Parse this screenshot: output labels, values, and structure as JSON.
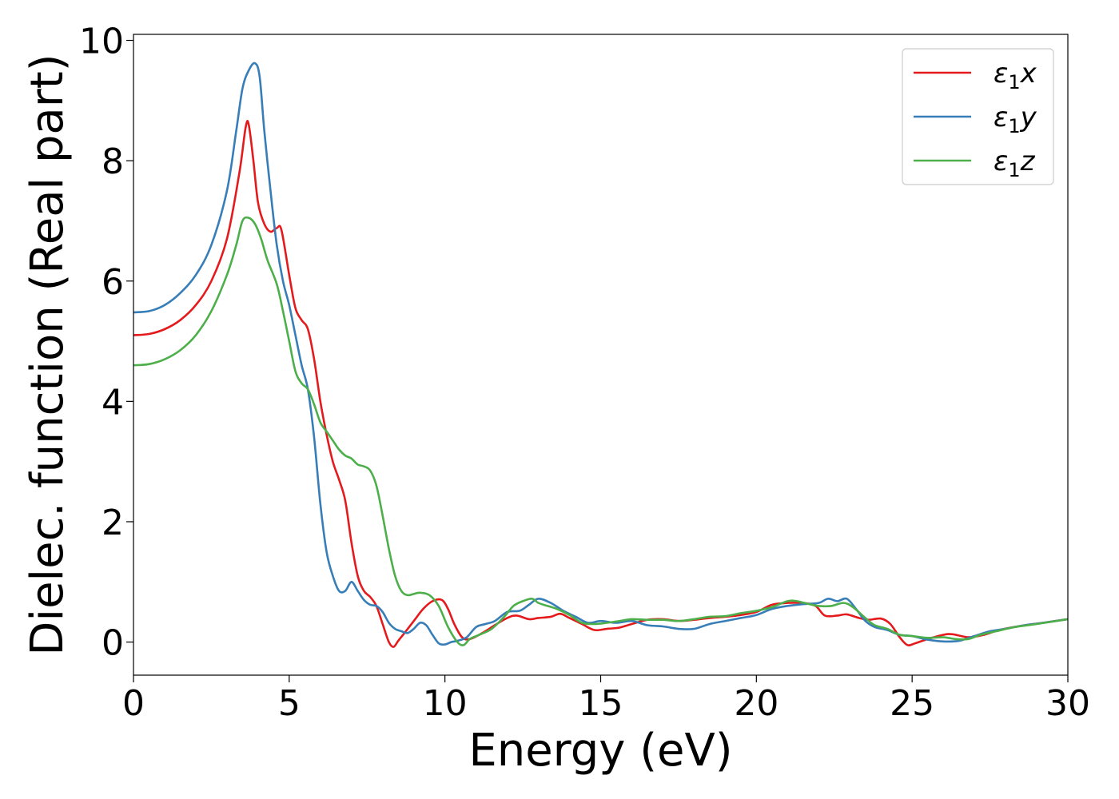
{
  "chart_data": {
    "type": "line",
    "title": "",
    "xlabel": "Energy (eV)",
    "ylabel": "Dielec. function (Real part)",
    "xlim": [
      0,
      30
    ],
    "ylim": [
      -0.55,
      10.1
    ],
    "xticks": [
      0,
      5,
      10,
      15,
      20,
      25,
      30
    ],
    "yticks": [
      0,
      2,
      4,
      6,
      8,
      10
    ],
    "xtick_labels": [
      "0",
      "5",
      "10",
      "15",
      "20",
      "25",
      "30"
    ],
    "ytick_labels": [
      "0",
      "2",
      "4",
      "6",
      "8",
      "10"
    ],
    "grid": false,
    "legend_position": "top-right",
    "series": [
      {
        "name": "ε₁x",
        "legend_base": "ε",
        "legend_sub": "1",
        "legend_suffix": "x",
        "color": "#e41a1c",
        "points": [
          [
            0,
            5.1
          ],
          [
            0.5,
            5.12
          ],
          [
            1,
            5.2
          ],
          [
            1.5,
            5.35
          ],
          [
            2,
            5.6
          ],
          [
            2.5,
            6.0
          ],
          [
            3,
            6.7
          ],
          [
            3.4,
            7.8
          ],
          [
            3.6,
            8.55
          ],
          [
            3.7,
            8.6
          ],
          [
            3.85,
            8.0
          ],
          [
            4.0,
            7.3
          ],
          [
            4.2,
            6.95
          ],
          [
            4.4,
            6.82
          ],
          [
            4.6,
            6.88
          ],
          [
            4.75,
            6.85
          ],
          [
            5.0,
            6.1
          ],
          [
            5.2,
            5.55
          ],
          [
            5.4,
            5.35
          ],
          [
            5.6,
            5.2
          ],
          [
            5.8,
            4.7
          ],
          [
            6.0,
            4.0
          ],
          [
            6.2,
            3.45
          ],
          [
            6.4,
            3.0
          ],
          [
            6.6,
            2.7
          ],
          [
            6.8,
            2.35
          ],
          [
            7.0,
            1.65
          ],
          [
            7.2,
            1.1
          ],
          [
            7.4,
            0.85
          ],
          [
            7.6,
            0.75
          ],
          [
            7.8,
            0.6
          ],
          [
            8.0,
            0.3
          ],
          [
            8.2,
            0.0
          ],
          [
            8.35,
            -0.08
          ],
          [
            8.5,
            0.02
          ],
          [
            8.7,
            0.15
          ],
          [
            9.0,
            0.35
          ],
          [
            9.3,
            0.55
          ],
          [
            9.6,
            0.68
          ],
          [
            9.9,
            0.7
          ],
          [
            10.1,
            0.55
          ],
          [
            10.3,
            0.3
          ],
          [
            10.55,
            0.08
          ],
          [
            10.8,
            0.05
          ],
          [
            11.2,
            0.15
          ],
          [
            11.6,
            0.28
          ],
          [
            12.0,
            0.4
          ],
          [
            12.3,
            0.44
          ],
          [
            12.7,
            0.38
          ],
          [
            13.0,
            0.4
          ],
          [
            13.4,
            0.42
          ],
          [
            13.7,
            0.47
          ],
          [
            14.0,
            0.4
          ],
          [
            14.4,
            0.3
          ],
          [
            14.8,
            0.2
          ],
          [
            15.2,
            0.22
          ],
          [
            15.6,
            0.24
          ],
          [
            16.0,
            0.3
          ],
          [
            16.5,
            0.37
          ],
          [
            17.0,
            0.38
          ],
          [
            17.5,
            0.35
          ],
          [
            18.0,
            0.37
          ],
          [
            18.5,
            0.4
          ],
          [
            19.0,
            0.42
          ],
          [
            19.5,
            0.45
          ],
          [
            20.0,
            0.5
          ],
          [
            20.5,
            0.62
          ],
          [
            21.0,
            0.65
          ],
          [
            21.5,
            0.65
          ],
          [
            21.9,
            0.6
          ],
          [
            22.2,
            0.44
          ],
          [
            22.6,
            0.44
          ],
          [
            22.9,
            0.46
          ],
          [
            23.3,
            0.4
          ],
          [
            23.6,
            0.37
          ],
          [
            24.0,
            0.39
          ],
          [
            24.3,
            0.3
          ],
          [
            24.6,
            0.08
          ],
          [
            24.85,
            -0.05
          ],
          [
            25.1,
            -0.02
          ],
          [
            25.5,
            0.05
          ],
          [
            26.0,
            0.12
          ],
          [
            26.3,
            0.13
          ],
          [
            26.8,
            0.08
          ],
          [
            27.3,
            0.12
          ],
          [
            27.8,
            0.2
          ],
          [
            28.5,
            0.27
          ],
          [
            29.2,
            0.32
          ],
          [
            30.0,
            0.38
          ]
        ]
      },
      {
        "name": "ε₁y",
        "legend_base": "ε",
        "legend_sub": "1",
        "legend_suffix": "y",
        "color": "#377eb8",
        "points": [
          [
            0,
            5.48
          ],
          [
            0.5,
            5.5
          ],
          [
            1,
            5.6
          ],
          [
            1.5,
            5.8
          ],
          [
            2,
            6.1
          ],
          [
            2.5,
            6.6
          ],
          [
            3,
            7.5
          ],
          [
            3.3,
            8.5
          ],
          [
            3.5,
            9.2
          ],
          [
            3.7,
            9.5
          ],
          [
            3.9,
            9.62
          ],
          [
            4.05,
            9.4
          ],
          [
            4.2,
            8.5
          ],
          [
            4.4,
            7.5
          ],
          [
            4.6,
            6.6
          ],
          [
            4.8,
            6.0
          ],
          [
            5.0,
            5.6
          ],
          [
            5.2,
            5.1
          ],
          [
            5.4,
            4.6
          ],
          [
            5.6,
            4.2
          ],
          [
            5.8,
            3.4
          ],
          [
            6.0,
            2.3
          ],
          [
            6.2,
            1.5
          ],
          [
            6.4,
            1.1
          ],
          [
            6.6,
            0.85
          ],
          [
            6.8,
            0.85
          ],
          [
            7.0,
            1.0
          ],
          [
            7.2,
            0.85
          ],
          [
            7.4,
            0.7
          ],
          [
            7.6,
            0.62
          ],
          [
            7.8,
            0.6
          ],
          [
            8.0,
            0.5
          ],
          [
            8.2,
            0.32
          ],
          [
            8.4,
            0.22
          ],
          [
            8.6,
            0.18
          ],
          [
            8.8,
            0.15
          ],
          [
            9.0,
            0.22
          ],
          [
            9.2,
            0.32
          ],
          [
            9.4,
            0.28
          ],
          [
            9.6,
            0.12
          ],
          [
            9.8,
            -0.02
          ],
          [
            10.0,
            -0.04
          ],
          [
            10.2,
            0.0
          ],
          [
            10.4,
            0.02
          ],
          [
            10.7,
            0.08
          ],
          [
            11.0,
            0.25
          ],
          [
            11.3,
            0.3
          ],
          [
            11.6,
            0.35
          ],
          [
            12.0,
            0.5
          ],
          [
            12.4,
            0.52
          ],
          [
            12.7,
            0.62
          ],
          [
            13.0,
            0.72
          ],
          [
            13.4,
            0.65
          ],
          [
            13.8,
            0.52
          ],
          [
            14.2,
            0.42
          ],
          [
            14.6,
            0.32
          ],
          [
            15.0,
            0.35
          ],
          [
            15.5,
            0.32
          ],
          [
            16.0,
            0.35
          ],
          [
            16.5,
            0.28
          ],
          [
            17.0,
            0.26
          ],
          [
            17.5,
            0.22
          ],
          [
            18.0,
            0.22
          ],
          [
            18.5,
            0.3
          ],
          [
            19.0,
            0.35
          ],
          [
            19.5,
            0.4
          ],
          [
            20.0,
            0.45
          ],
          [
            20.5,
            0.55
          ],
          [
            21.0,
            0.6
          ],
          [
            21.5,
            0.63
          ],
          [
            22.0,
            0.65
          ],
          [
            22.3,
            0.72
          ],
          [
            22.6,
            0.68
          ],
          [
            22.9,
            0.72
          ],
          [
            23.2,
            0.55
          ],
          [
            23.5,
            0.35
          ],
          [
            23.8,
            0.25
          ],
          [
            24.2,
            0.2
          ],
          [
            24.6,
            0.12
          ],
          [
            25.0,
            0.1
          ],
          [
            25.5,
            0.04
          ],
          [
            26.0,
            0.01
          ],
          [
            26.5,
            0.02
          ],
          [
            27.0,
            0.1
          ],
          [
            27.5,
            0.18
          ],
          [
            28.0,
            0.22
          ],
          [
            28.5,
            0.27
          ],
          [
            29.2,
            0.32
          ],
          [
            30.0,
            0.38
          ]
        ]
      },
      {
        "name": "ε₁z",
        "legend_base": "ε",
        "legend_sub": "1",
        "legend_suffix": "z",
        "color": "#4daf4a",
        "points": [
          [
            0,
            4.6
          ],
          [
            0.5,
            4.62
          ],
          [
            1,
            4.7
          ],
          [
            1.5,
            4.85
          ],
          [
            2,
            5.1
          ],
          [
            2.5,
            5.5
          ],
          [
            3,
            6.1
          ],
          [
            3.3,
            6.6
          ],
          [
            3.5,
            7.0
          ],
          [
            3.7,
            7.05
          ],
          [
            3.9,
            6.95
          ],
          [
            4.1,
            6.7
          ],
          [
            4.3,
            6.35
          ],
          [
            4.6,
            5.95
          ],
          [
            4.8,
            5.5
          ],
          [
            5.0,
            5.0
          ],
          [
            5.2,
            4.5
          ],
          [
            5.4,
            4.3
          ],
          [
            5.6,
            4.2
          ],
          [
            5.8,
            3.95
          ],
          [
            6.0,
            3.65
          ],
          [
            6.2,
            3.5
          ],
          [
            6.4,
            3.35
          ],
          [
            6.6,
            3.2
          ],
          [
            6.8,
            3.1
          ],
          [
            7.0,
            3.05
          ],
          [
            7.2,
            2.95
          ],
          [
            7.4,
            2.92
          ],
          [
            7.6,
            2.85
          ],
          [
            7.8,
            2.6
          ],
          [
            8.0,
            2.1
          ],
          [
            8.2,
            1.55
          ],
          [
            8.4,
            1.1
          ],
          [
            8.6,
            0.85
          ],
          [
            8.8,
            0.78
          ],
          [
            9.0,
            0.8
          ],
          [
            9.2,
            0.82
          ],
          [
            9.5,
            0.78
          ],
          [
            9.8,
            0.6
          ],
          [
            10.1,
            0.25
          ],
          [
            10.4,
            0.0
          ],
          [
            10.6,
            -0.05
          ],
          [
            10.8,
            0.05
          ],
          [
            11.1,
            0.12
          ],
          [
            11.5,
            0.22
          ],
          [
            11.9,
            0.42
          ],
          [
            12.2,
            0.6
          ],
          [
            12.5,
            0.68
          ],
          [
            12.8,
            0.72
          ],
          [
            13.0,
            0.65
          ],
          [
            13.3,
            0.6
          ],
          [
            13.6,
            0.55
          ],
          [
            14.0,
            0.45
          ],
          [
            14.4,
            0.32
          ],
          [
            14.8,
            0.3
          ],
          [
            15.2,
            0.32
          ],
          [
            15.6,
            0.35
          ],
          [
            16.0,
            0.38
          ],
          [
            16.5,
            0.37
          ],
          [
            17.0,
            0.37
          ],
          [
            17.5,
            0.35
          ],
          [
            18.0,
            0.38
          ],
          [
            18.5,
            0.42
          ],
          [
            19.0,
            0.43
          ],
          [
            19.5,
            0.48
          ],
          [
            20.0,
            0.52
          ],
          [
            20.5,
            0.58
          ],
          [
            21.0,
            0.68
          ],
          [
            21.3,
            0.68
          ],
          [
            21.7,
            0.63
          ],
          [
            22.0,
            0.6
          ],
          [
            22.4,
            0.6
          ],
          [
            22.8,
            0.65
          ],
          [
            23.1,
            0.58
          ],
          [
            23.5,
            0.4
          ],
          [
            23.8,
            0.28
          ],
          [
            24.2,
            0.22
          ],
          [
            24.6,
            0.12
          ],
          [
            25.0,
            0.1
          ],
          [
            25.5,
            0.07
          ],
          [
            26.0,
            0.08
          ],
          [
            26.4,
            0.05
          ],
          [
            26.8,
            0.05
          ],
          [
            27.2,
            0.12
          ],
          [
            27.7,
            0.18
          ],
          [
            28.3,
            0.25
          ],
          [
            29.0,
            0.3
          ],
          [
            30.0,
            0.38
          ]
        ]
      }
    ]
  }
}
